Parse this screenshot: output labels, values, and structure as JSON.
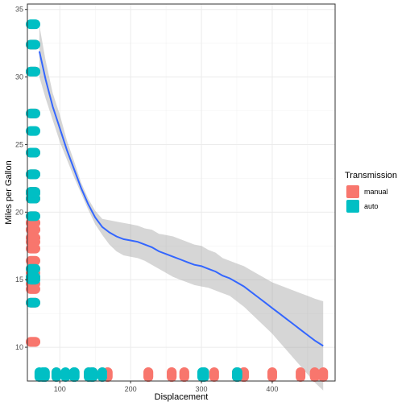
{
  "chart_data": {
    "type": "scatter",
    "title": "",
    "xlabel": "Displacement",
    "ylabel": "Miles per Gallon",
    "xlim": [
      54.2,
      488.8
    ],
    "ylim": [
      7.5,
      35.4
    ],
    "xticks": [
      100,
      200,
      300,
      400
    ],
    "yticks": [
      10,
      15,
      20,
      25,
      30,
      35
    ],
    "grid": true,
    "legend": {
      "title": "Transmission",
      "placement": "right",
      "entries": [
        {
          "label": "manual",
          "color": "#F8766D"
        },
        {
          "label": "auto",
          "color": "#00BFC4"
        }
      ]
    },
    "series": [
      {
        "name": "manual",
        "color": "#F8766D",
        "x_points": [
          258,
          225,
          258,
          360,
          275.8,
          275.8,
          360,
          360,
          460,
          472,
          440,
          146.7,
          140.8,
          167.6,
          304,
          318,
          350,
          400,
          351,
          360,
          145,
          78.7,
          160,
          120.3,
          120.1,
          167.6,
          225,
          95.1
        ],
        "y_points": [
          21.4,
          18.1,
          18.7,
          18.7,
          16.4,
          17.3,
          15.2,
          14.3,
          10.4,
          10.4,
          14.7,
          24.4,
          22.8,
          19.2,
          15.2,
          15.5,
          13.3,
          19.2,
          15.8,
          21.0,
          19.7,
          32.4,
          21.0,
          21.5,
          27.3,
          17.8,
          18.1,
          30.4
        ]
      },
      {
        "name": "auto",
        "color": "#00BFC4",
        "x_points": [
          160,
          108,
          146.7,
          140.8,
          78.7,
          75.7,
          71.1,
          120.1,
          79,
          120.3,
          95.1,
          351,
          145,
          121,
          301,
          304,
          350
        ],
        "y_points": [
          21.0,
          22.8,
          24.4,
          22.8,
          32.4,
          30.4,
          33.9,
          21.5,
          27.3,
          26.0,
          30.4,
          15.8,
          19.7,
          21.4,
          15.0,
          15.2,
          13.3
        ]
      }
    ],
    "smooth": {
      "color": "#3366FF",
      "band_color": "#999999",
      "x": [
        71.1,
        80,
        90,
        100,
        110,
        120,
        130,
        140,
        150,
        160,
        170,
        180,
        190,
        200,
        210,
        220,
        230,
        240,
        250,
        260,
        270,
        280,
        290,
        300,
        310,
        320,
        330,
        340,
        350,
        360,
        370,
        380,
        390,
        400,
        410,
        420,
        430,
        440,
        450,
        460,
        472
      ],
      "y": [
        31.9,
        29.8,
        27.8,
        26.2,
        24.6,
        23.2,
        21.8,
        20.6,
        19.6,
        18.9,
        18.5,
        18.2,
        18.0,
        17.9,
        17.8,
        17.6,
        17.4,
        17.1,
        16.9,
        16.7,
        16.5,
        16.3,
        16.1,
        16.0,
        15.8,
        15.6,
        15.3,
        15.1,
        14.8,
        14.5,
        14.1,
        13.7,
        13.3,
        12.9,
        12.5,
        12.1,
        11.7,
        11.3,
        10.9,
        10.5,
        10.1
      ],
      "lower": [
        30.0,
        28.4,
        26.8,
        25.2,
        23.9,
        22.6,
        21.4,
        20.2,
        19.1,
        18.3,
        17.6,
        17.1,
        16.8,
        16.7,
        16.6,
        16.4,
        16.1,
        15.8,
        15.5,
        15.2,
        15.0,
        14.8,
        14.6,
        14.5,
        14.4,
        14.2,
        14.0,
        13.8,
        13.4,
        13.0,
        12.5,
        12.0,
        11.5,
        11.0,
        10.4,
        9.8,
        9.2,
        8.6,
        8.0,
        7.4,
        6.8
      ],
      "upper": [
        33.8,
        31.2,
        28.8,
        27.2,
        25.3,
        23.8,
        22.2,
        21.0,
        20.1,
        19.5,
        19.4,
        19.3,
        19.2,
        19.1,
        19.0,
        18.8,
        18.7,
        18.4,
        18.3,
        18.2,
        18.0,
        17.8,
        17.6,
        17.5,
        17.2,
        17.0,
        16.6,
        16.4,
        16.2,
        16.0,
        15.7,
        15.4,
        15.1,
        14.8,
        14.6,
        14.4,
        14.2,
        14.0,
        13.8,
        13.6,
        13.4
      ]
    }
  }
}
